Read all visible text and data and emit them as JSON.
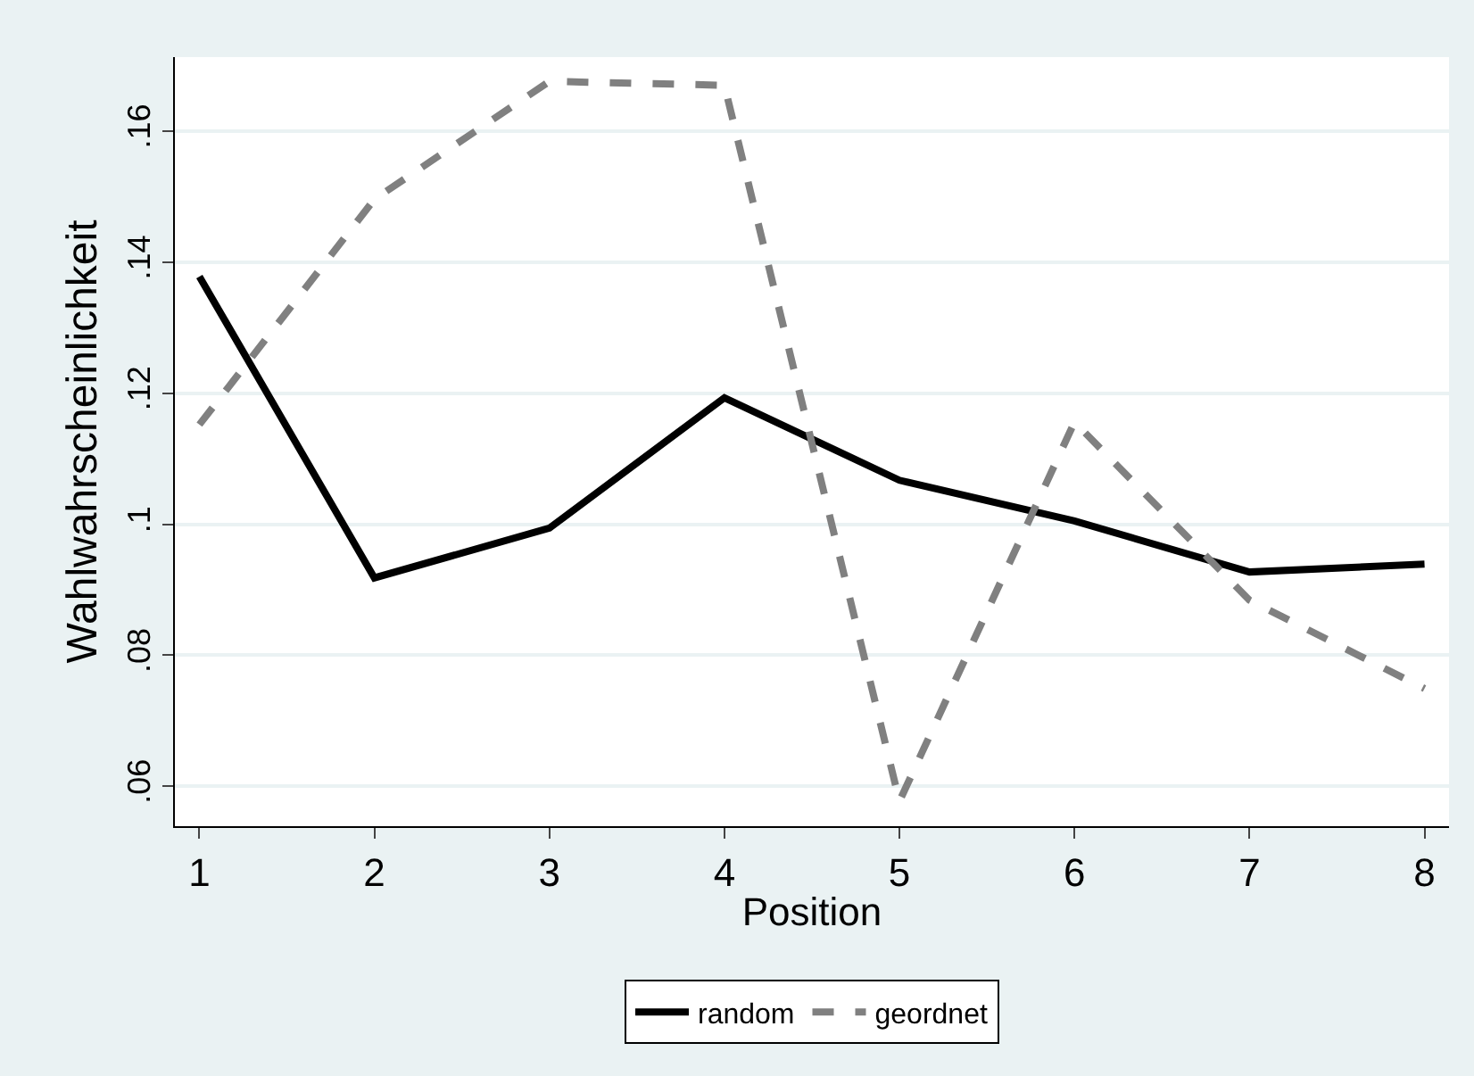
{
  "chart_data": {
    "type": "line",
    "xlabel": "Position",
    "ylabel": "Wahlwahrscheinlichkeit",
    "x": [
      1,
      2,
      3,
      4,
      5,
      6,
      7,
      8
    ],
    "series": [
      {
        "name": "random",
        "color": "#000000",
        "line_style": "solid",
        "values": [
          0.1378,
          0.0918,
          0.0994,
          0.1193,
          0.1067,
          0.1005,
          0.0927,
          0.0939
        ]
      },
      {
        "name": "geordnet",
        "color": "#808080",
        "line_style": "dashed",
        "values": [
          0.1152,
          0.1496,
          0.1676,
          0.167,
          0.0577,
          0.1156,
          0.0884,
          0.0749
        ]
      }
    ],
    "xlim": [
      0.86,
      8.14
    ],
    "xticks": [
      1,
      2,
      3,
      4,
      5,
      6,
      7,
      8
    ],
    "ylim": [
      0.0539,
      0.1713
    ],
    "yticks": [
      {
        "value": 0.06,
        "label": ".06"
      },
      {
        "value": 0.08,
        "label": ".08"
      },
      {
        "value": 0.1,
        "label": ".1"
      },
      {
        "value": 0.12,
        "label": ".12"
      },
      {
        "value": 0.14,
        "label": ".14"
      },
      {
        "value": 0.16,
        "label": ".16"
      }
    ],
    "grid": "y",
    "legend": "bottom",
    "marker": "none"
  }
}
